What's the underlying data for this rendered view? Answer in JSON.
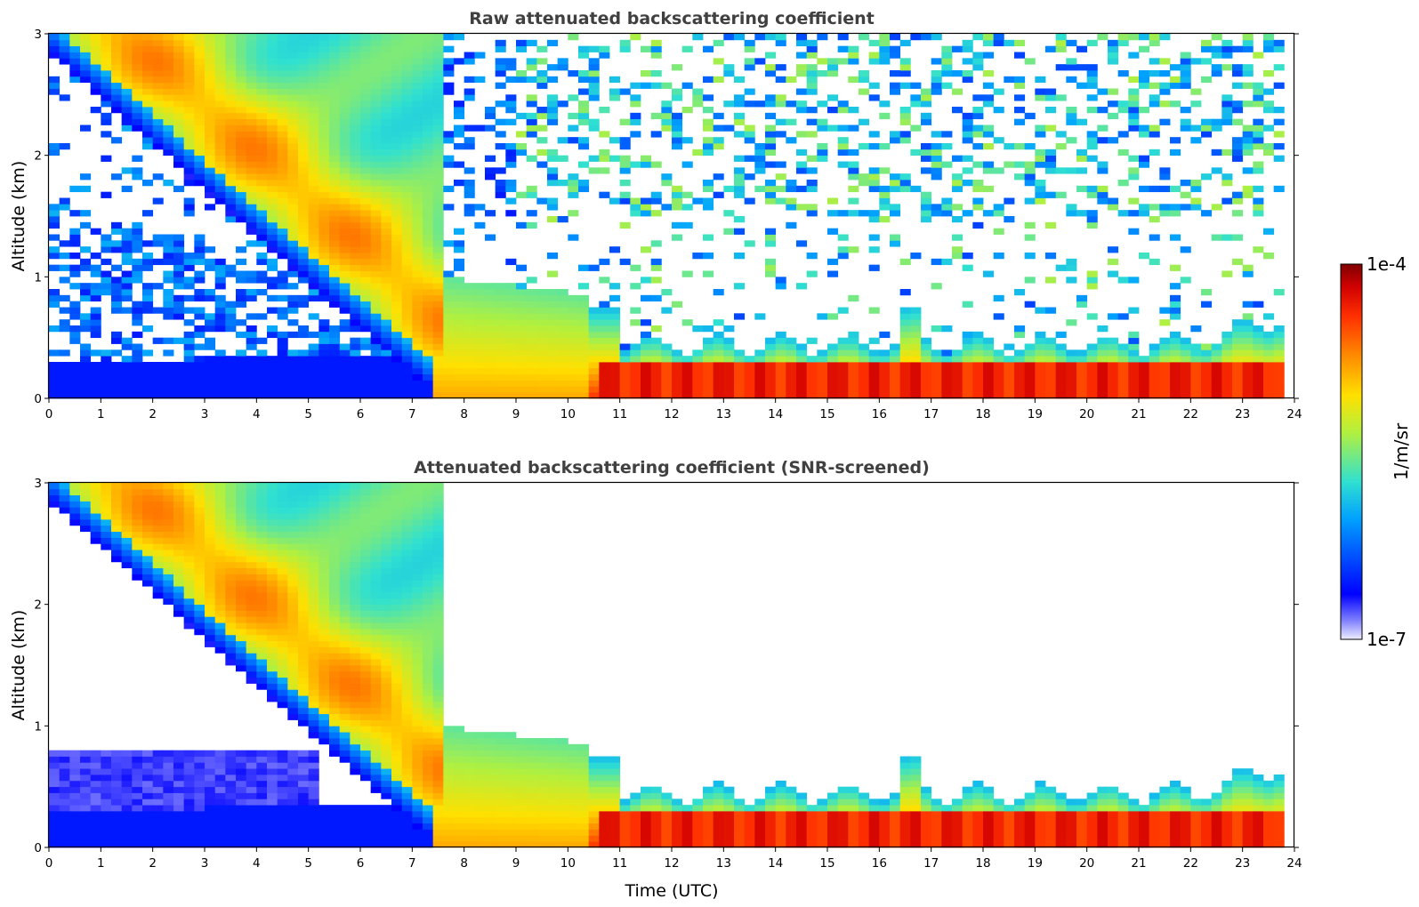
{
  "chart_data": [
    {
      "type": "heatmap",
      "title": "Raw attenuated backscattering coefficient",
      "xlabel": "",
      "ylabel": "Altitude (km)",
      "xlim": [
        0,
        24
      ],
      "ylim": [
        0,
        3
      ],
      "x_ticks": [
        "0",
        "1",
        "2",
        "3",
        "4",
        "5",
        "6",
        "7",
        "8",
        "9",
        "10",
        "11",
        "12",
        "13",
        "14",
        "15",
        "16",
        "17",
        "18",
        "19",
        "20",
        "21",
        "22",
        "23",
        "24"
      ],
      "y_ticks": [
        "0",
        "1",
        "2",
        "3"
      ],
      "screening": "none"
    },
    {
      "type": "heatmap",
      "title": "Attenuated backscattering coefficient (SNR-screened)",
      "xlabel": "Time (UTC)",
      "ylabel": "Altitude (km)",
      "xlim": [
        0,
        24
      ],
      "ylim": [
        0,
        3
      ],
      "x_ticks": [
        "0",
        "1",
        "2",
        "3",
        "4",
        "5",
        "6",
        "7",
        "8",
        "9",
        "10",
        "11",
        "12",
        "13",
        "14",
        "15",
        "16",
        "17",
        "18",
        "19",
        "20",
        "21",
        "22",
        "23",
        "24"
      ],
      "y_ticks": [
        "0",
        "1",
        "2",
        "3"
      ],
      "screening": "SNR"
    }
  ],
  "colorbar": {
    "label": "1/m/sr",
    "max_label": "1e-4",
    "min_label": "1e-7",
    "scale": "log",
    "colormap": "jet",
    "colors": [
      "#eeeeff",
      "#0000ff",
      "#00a0ff",
      "#30e0d0",
      "#b0f040",
      "#ffe000",
      "#ff7000",
      "#e01000",
      "#800000"
    ]
  }
}
